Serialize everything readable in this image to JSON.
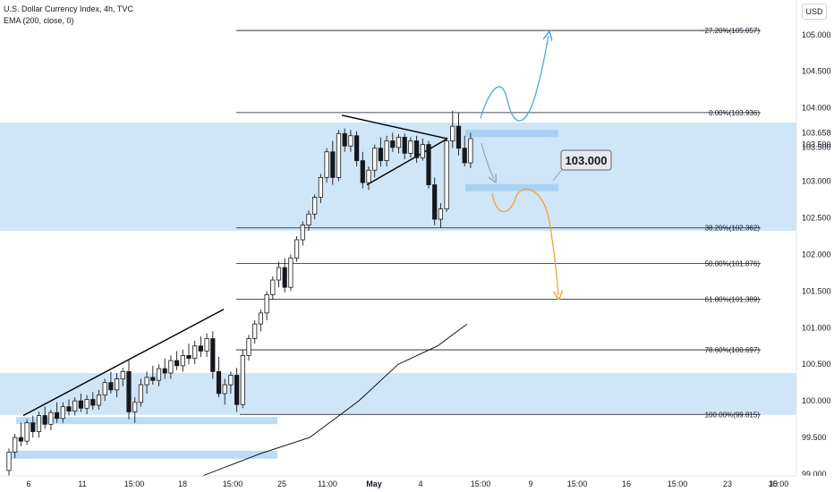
{
  "header": {
    "title": "U.S. Dollar Currency Index, 4h, TVC",
    "indicator": "EMA (200, close, 0)",
    "currency": "USD"
  },
  "chart_data": {
    "type": "candlestick",
    "ylim": [
      99.0,
      105.4
    ],
    "y_ticks": [
      "105.000",
      "104.500",
      "104.000",
      "103.500",
      "103.000",
      "102.500",
      "102.000",
      "101.500",
      "101.000",
      "100.500",
      "100.000",
      "99.500",
      "99.000"
    ],
    "x_ticks": [
      "6",
      "11",
      "15:00",
      "18",
      "15:00",
      "25",
      "11:00",
      "May",
      "4",
      "15:00",
      "9",
      "15:00",
      "16",
      "15:00",
      "23",
      "15:00",
      "30"
    ],
    "price_labels": [
      "103.658",
      "103.500"
    ],
    "fib_levels": [
      {
        "label": "−27.20%(105.057)",
        "value": 105.057
      },
      {
        "label": "0.00%(103.936)",
        "value": 103.936
      },
      {
        "label": "38.20%(102.362)",
        "value": 102.362
      },
      {
        "label": "50.00%(101.876)",
        "value": 101.876
      },
      {
        "label": "61.80%(101.389)",
        "value": 101.389
      },
      {
        "label": "78.60%(100.697)",
        "value": 100.697
      },
      {
        "label": "100.00%(99.815)",
        "value": 99.815
      }
    ],
    "callout": "103.000",
    "zones": [
      {
        "y_top": 103.8,
        "y_bottom": 102.32
      },
      {
        "y_top": 100.38,
        "y_bottom": 99.81
      }
    ],
    "ema": [
      {
        "x": 0.0,
        "y": 98.97
      },
      {
        "x": 0.3,
        "y": 99.28
      },
      {
        "x": 0.55,
        "y": 99.5
      },
      {
        "x": 0.8,
        "y": 100.0
      },
      {
        "x": 1.0,
        "y": 100.5
      },
      {
        "x": 1.2,
        "y": 100.75
      },
      {
        "x": 1.35,
        "y": 101.05
      }
    ],
    "candles": [
      {
        "x": 0.0,
        "o": 99.05,
        "h": 99.35,
        "l": 98.95,
        "c": 99.3
      },
      {
        "x": 0.01,
        "o": 99.3,
        "h": 99.55,
        "l": 99.22,
        "c": 99.5
      },
      {
        "x": 0.02,
        "o": 99.5,
        "h": 99.7,
        "l": 99.38,
        "c": 99.45
      },
      {
        "x": 0.03,
        "o": 99.45,
        "h": 99.75,
        "l": 99.4,
        "c": 99.7
      },
      {
        "x": 0.04,
        "o": 99.7,
        "h": 99.8,
        "l": 99.5,
        "c": 99.58
      },
      {
        "x": 0.05,
        "o": 99.58,
        "h": 99.85,
        "l": 99.5,
        "c": 99.8
      },
      {
        "x": 0.06,
        "o": 99.8,
        "h": 99.92,
        "l": 99.62,
        "c": 99.68
      },
      {
        "x": 0.07,
        "o": 99.68,
        "h": 99.88,
        "l": 99.6,
        "c": 99.84
      },
      {
        "x": 0.08,
        "o": 99.84,
        "h": 99.98,
        "l": 99.7,
        "c": 99.76
      },
      {
        "x": 0.09,
        "o": 99.76,
        "h": 99.98,
        "l": 99.7,
        "c": 99.92
      },
      {
        "x": 0.1,
        "o": 99.92,
        "h": 100.02,
        "l": 99.8,
        "c": 99.86
      },
      {
        "x": 0.11,
        "o": 99.86,
        "h": 100.05,
        "l": 99.8,
        "c": 100.0
      },
      {
        "x": 0.12,
        "o": 100.0,
        "h": 100.1,
        "l": 99.85,
        "c": 99.9
      },
      {
        "x": 0.13,
        "o": 99.9,
        "h": 100.08,
        "l": 99.82,
        "c": 100.02
      },
      {
        "x": 0.14,
        "o": 100.02,
        "h": 100.12,
        "l": 99.88,
        "c": 99.94
      },
      {
        "x": 0.15,
        "o": 99.94,
        "h": 100.15,
        "l": 99.88,
        "c": 100.08
      },
      {
        "x": 0.16,
        "o": 100.08,
        "h": 100.3,
        "l": 100.0,
        "c": 100.25
      },
      {
        "x": 0.17,
        "o": 100.25,
        "h": 100.4,
        "l": 100.1,
        "c": 100.15
      },
      {
        "x": 0.18,
        "o": 100.15,
        "h": 100.38,
        "l": 100.05,
        "c": 100.3
      },
      {
        "x": 0.19,
        "o": 100.3,
        "h": 100.45,
        "l": 100.2,
        "c": 100.4
      },
      {
        "x": 0.2,
        "o": 100.4,
        "h": 100.55,
        "l": 99.75,
        "c": 99.85
      },
      {
        "x": 0.21,
        "o": 99.85,
        "h": 100.05,
        "l": 99.7,
        "c": 99.98
      },
      {
        "x": 0.22,
        "o": 99.98,
        "h": 100.3,
        "l": 99.92,
        "c": 100.22
      },
      {
        "x": 0.23,
        "o": 100.22,
        "h": 100.4,
        "l": 100.1,
        "c": 100.32
      },
      {
        "x": 0.24,
        "o": 100.32,
        "h": 100.48,
        "l": 100.22,
        "c": 100.28
      },
      {
        "x": 0.25,
        "o": 100.28,
        "h": 100.5,
        "l": 100.2,
        "c": 100.44
      },
      {
        "x": 0.26,
        "o": 100.44,
        "h": 100.58,
        "l": 100.3,
        "c": 100.38
      },
      {
        "x": 0.27,
        "o": 100.38,
        "h": 100.62,
        "l": 100.3,
        "c": 100.55
      },
      {
        "x": 0.28,
        "o": 100.55,
        "h": 100.68,
        "l": 100.42,
        "c": 100.48
      },
      {
        "x": 0.29,
        "o": 100.48,
        "h": 100.7,
        "l": 100.4,
        "c": 100.62
      },
      {
        "x": 0.3,
        "o": 100.62,
        "h": 100.78,
        "l": 100.5,
        "c": 100.58
      },
      {
        "x": 0.31,
        "o": 100.58,
        "h": 100.82,
        "l": 100.5,
        "c": 100.75
      },
      {
        "x": 0.32,
        "o": 100.75,
        "h": 100.88,
        "l": 100.6,
        "c": 100.68
      },
      {
        "x": 0.33,
        "o": 100.68,
        "h": 100.92,
        "l": 100.6,
        "c": 100.85
      },
      {
        "x": 0.34,
        "o": 100.85,
        "h": 100.95,
        "l": 100.3,
        "c": 100.4
      },
      {
        "x": 0.35,
        "o": 100.4,
        "h": 100.6,
        "l": 100.05,
        "c": 100.1
      },
      {
        "x": 0.36,
        "o": 100.1,
        "h": 100.3,
        "l": 99.95,
        "c": 100.22
      },
      {
        "x": 0.37,
        "o": 100.22,
        "h": 100.4,
        "l": 100.1,
        "c": 100.35
      },
      {
        "x": 0.38,
        "o": 100.35,
        "h": 100.45,
        "l": 99.85,
        "c": 99.95
      },
      {
        "x": 0.39,
        "o": 99.95,
        "h": 100.7,
        "l": 99.9,
        "c": 100.62
      },
      {
        "x": 0.4,
        "o": 100.62,
        "h": 100.9,
        "l": 100.55,
        "c": 100.85
      },
      {
        "x": 0.41,
        "o": 100.85,
        "h": 101.1,
        "l": 100.78,
        "c": 101.05
      },
      {
        "x": 0.42,
        "o": 101.05,
        "h": 101.25,
        "l": 100.95,
        "c": 101.2
      },
      {
        "x": 0.43,
        "o": 101.2,
        "h": 101.5,
        "l": 101.1,
        "c": 101.45
      },
      {
        "x": 0.44,
        "o": 101.45,
        "h": 101.7,
        "l": 101.38,
        "c": 101.65
      },
      {
        "x": 0.45,
        "o": 101.65,
        "h": 101.9,
        "l": 101.55,
        "c": 101.82
      },
      {
        "x": 0.46,
        "o": 101.82,
        "h": 101.95,
        "l": 101.48,
        "c": 101.55
      },
      {
        "x": 0.47,
        "o": 101.55,
        "h": 102.0,
        "l": 101.5,
        "c": 101.95
      },
      {
        "x": 0.48,
        "o": 101.95,
        "h": 102.25,
        "l": 101.9,
        "c": 102.2
      },
      {
        "x": 0.49,
        "o": 102.2,
        "h": 102.45,
        "l": 102.12,
        "c": 102.4
      },
      {
        "x": 0.5,
        "o": 102.4,
        "h": 102.6,
        "l": 102.32,
        "c": 102.55
      },
      {
        "x": 0.51,
        "o": 102.55,
        "h": 102.82,
        "l": 102.48,
        "c": 102.78
      },
      {
        "x": 0.52,
        "o": 102.78,
        "h": 103.1,
        "l": 102.7,
        "c": 103.05
      },
      {
        "x": 0.53,
        "o": 103.05,
        "h": 103.45,
        "l": 102.98,
        "c": 103.4
      },
      {
        "x": 0.54,
        "o": 103.4,
        "h": 103.55,
        "l": 102.95,
        "c": 103.05
      },
      {
        "x": 0.55,
        "o": 103.05,
        "h": 103.7,
        "l": 103.0,
        "c": 103.65
      },
      {
        "x": 0.56,
        "o": 103.65,
        "h": 103.72,
        "l": 103.4,
        "c": 103.48
      },
      {
        "x": 0.57,
        "o": 103.48,
        "h": 103.7,
        "l": 103.4,
        "c": 103.62
      },
      {
        "x": 0.58,
        "o": 103.62,
        "h": 103.68,
        "l": 103.2,
        "c": 103.28
      },
      {
        "x": 0.59,
        "o": 103.28,
        "h": 103.4,
        "l": 102.9,
        "c": 102.98
      },
      {
        "x": 0.6,
        "o": 102.98,
        "h": 103.2,
        "l": 102.88,
        "c": 103.15
      },
      {
        "x": 0.61,
        "o": 103.15,
        "h": 103.5,
        "l": 103.05,
        "c": 103.45
      },
      {
        "x": 0.62,
        "o": 103.45,
        "h": 103.6,
        "l": 103.2,
        "c": 103.28
      },
      {
        "x": 0.63,
        "o": 103.28,
        "h": 103.62,
        "l": 103.2,
        "c": 103.55
      },
      {
        "x": 0.64,
        "o": 103.55,
        "h": 103.66,
        "l": 103.4,
        "c": 103.46
      },
      {
        "x": 0.65,
        "o": 103.46,
        "h": 103.64,
        "l": 103.38,
        "c": 103.6
      },
      {
        "x": 0.66,
        "o": 103.6,
        "h": 103.65,
        "l": 103.3,
        "c": 103.38
      },
      {
        "x": 0.67,
        "o": 103.38,
        "h": 103.6,
        "l": 103.32,
        "c": 103.55
      },
      {
        "x": 0.68,
        "o": 103.55,
        "h": 103.62,
        "l": 103.25,
        "c": 103.32
      },
      {
        "x": 0.69,
        "o": 103.32,
        "h": 103.58,
        "l": 103.28,
        "c": 103.5
      },
      {
        "x": 0.7,
        "o": 103.5,
        "h": 103.55,
        "l": 102.9,
        "c": 102.95
      },
      {
        "x": 0.71,
        "o": 102.95,
        "h": 103.05,
        "l": 102.4,
        "c": 102.48
      },
      {
        "x": 0.72,
        "o": 102.48,
        "h": 102.7,
        "l": 102.36,
        "c": 102.62
      },
      {
        "x": 0.73,
        "o": 102.62,
        "h": 103.6,
        "l": 102.58,
        "c": 103.55
      },
      {
        "x": 0.74,
        "o": 103.55,
        "h": 103.96,
        "l": 103.45,
        "c": 103.75
      },
      {
        "x": 0.75,
        "o": 103.75,
        "h": 103.94,
        "l": 103.35,
        "c": 103.45
      },
      {
        "x": 0.76,
        "o": 103.45,
        "h": 103.62,
        "l": 103.2,
        "c": 103.25
      },
      {
        "x": 0.77,
        "o": 103.25,
        "h": 103.66,
        "l": 103.18,
        "c": 103.58
      }
    ]
  }
}
